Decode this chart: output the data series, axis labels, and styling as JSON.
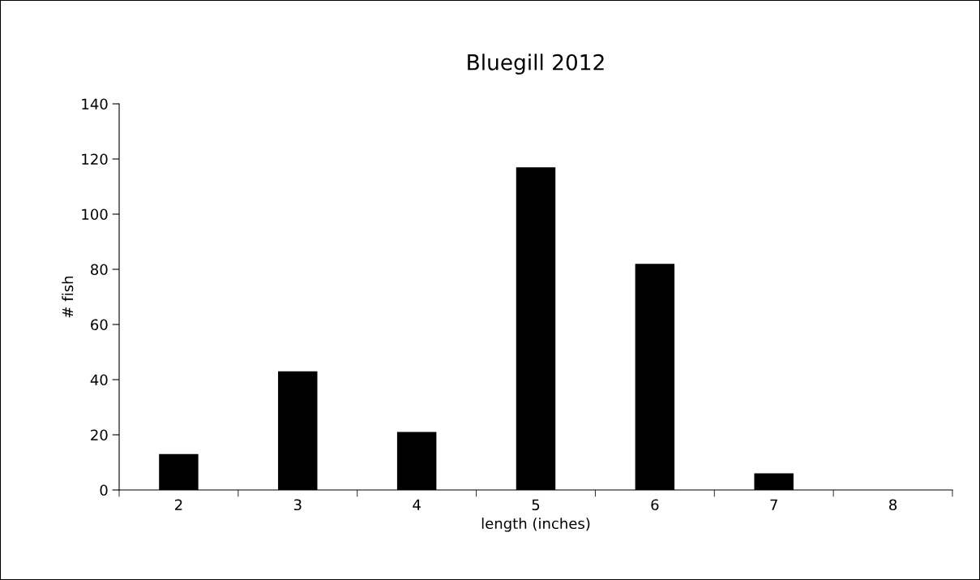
{
  "chart_data": {
    "type": "bar",
    "title": "Bluegill 2012",
    "xlabel": "length (inches)",
    "ylabel": "# fish",
    "categories": [
      "2",
      "3",
      "4",
      "5",
      "6",
      "7",
      "8"
    ],
    "values": [
      13,
      43,
      21,
      117,
      82,
      6,
      0
    ],
    "color": "#000000",
    "ylim": [
      0,
      140
    ],
    "yticks": [
      0,
      20,
      40,
      60,
      80,
      100,
      120,
      140
    ],
    "grid": false,
    "legend": false
  }
}
